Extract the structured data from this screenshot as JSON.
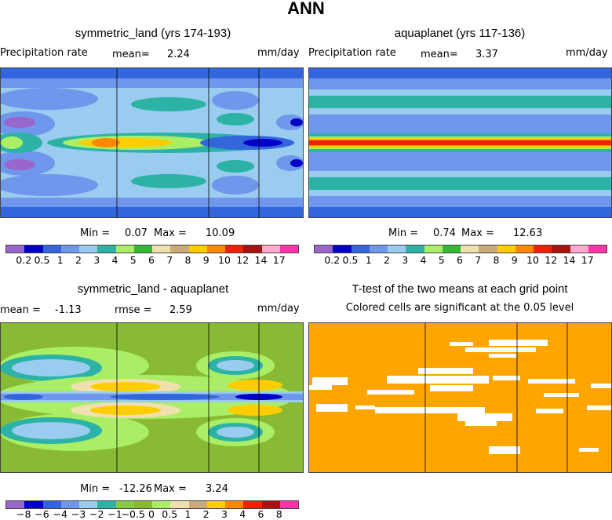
{
  "title": "ANN",
  "panels": [
    {
      "title": "symmetric_land (yrs 174-193)",
      "left_label": "Precipitation rate",
      "mean_label": "mean=",
      "mean_value": "2.24",
      "units": "mm/day",
      "min_label": "Min =",
      "min_value": "0.07",
      "max_label": "Max =",
      "max_value": "10.09"
    },
    {
      "title": "aquaplanet (yrs 117-136)",
      "left_label": "Precipitation rate",
      "mean_label": "mean=",
      "mean_value": "3.37",
      "units": "mm/day",
      "min_label": "Min =",
      "min_value": "0.74",
      "max_label": "Max =",
      "max_value": "12.63"
    },
    {
      "title": "symmetric_land - aquaplanet",
      "mean_label": "mean =",
      "mean_value": "-1.13",
      "rmse_label": "rmse =",
      "rmse_value": "2.59",
      "units": "mm/day",
      "min_label": "Min =",
      "min_value": "-12.26",
      "max_label": "Max =",
      "max_value": "3.24"
    },
    {
      "title": "T-test of the two means at each grid point",
      "subtitle": "Colored cells are significant at the 0.05 level"
    }
  ],
  "chart_data": [
    {
      "type": "heatmap",
      "title": "symmetric_land (yrs 174-193)",
      "variable": "Precipitation rate",
      "units": "mm/day",
      "mean": 2.24,
      "min": 0.07,
      "max": 10.09,
      "levels": [
        "0.2",
        "0.5",
        "1",
        "2",
        "3",
        "4",
        "5",
        "6",
        "7",
        "8",
        "9",
        "10",
        "12",
        "14",
        "17"
      ],
      "colors": [
        "#9966cc",
        "#0000c8",
        "#3366dd",
        "#6f98ec",
        "#99ccee",
        "#2db3a6",
        "#aaee66",
        "#33bb33",
        "#f0e0b0",
        "#ccaa77",
        "#ffcc00",
        "#ff8800",
        "#ee2200",
        "#aa1111",
        "#ffaacc",
        "#ff33aa"
      ]
    },
    {
      "type": "heatmap",
      "title": "aquaplanet (yrs 117-136)",
      "variable": "Precipitation rate",
      "units": "mm/day",
      "mean": 3.37,
      "min": 0.74,
      "max": 12.63,
      "levels": [
        "0.2",
        "0.5",
        "1",
        "2",
        "3",
        "4",
        "5",
        "6",
        "7",
        "8",
        "9",
        "10",
        "12",
        "14",
        "17"
      ],
      "colors": [
        "#9966cc",
        "#0000c8",
        "#3366dd",
        "#6f98ec",
        "#99ccee",
        "#2db3a6",
        "#aaee66",
        "#33bb33",
        "#f0e0b0",
        "#ccaa77",
        "#ffcc00",
        "#ff8800",
        "#ee2200",
        "#aa1111",
        "#ffaacc",
        "#ff33aa"
      ]
    },
    {
      "type": "heatmap",
      "title": "symmetric_land - aquaplanet",
      "units": "mm/day",
      "mean": -1.13,
      "rmse": 2.59,
      "min": -12.26,
      "max": 3.24,
      "levels": [
        "-8",
        "-6",
        "-4",
        "-3",
        "-2",
        "-1",
        "-0.5",
        "0",
        "0.5",
        "1",
        "2",
        "3",
        "4",
        "6",
        "8"
      ],
      "colors": [
        "#9966cc",
        "#0000c8",
        "#3366dd",
        "#6f98ec",
        "#99ccee",
        "#2db3a6",
        "#88cc44",
        "#88bb33",
        "#aaee66",
        "#f0e0b0",
        "#ccaa77",
        "#ffcc00",
        "#ff8800",
        "#ee2200",
        "#aa1111",
        "#ff33aa"
      ]
    },
    {
      "type": "heatmap",
      "title": "T-test of the two means at each grid point",
      "note": "Colored cells are significant at the 0.05 level",
      "significant_color": "#ffa500"
    }
  ]
}
